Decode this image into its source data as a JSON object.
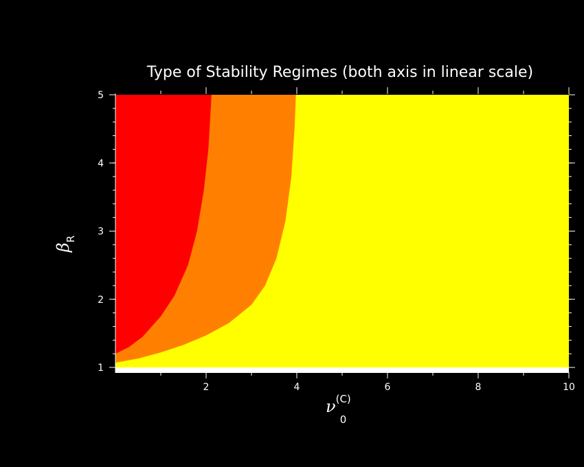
{
  "chart_data": {
    "type": "area",
    "title": "Type of Stability Regimes (both axis in linear scale)",
    "xlabel": {
      "symbol": "ν",
      "superscript": "(C)",
      "subscript": "0"
    },
    "ylabel": {
      "symbol": "β",
      "subscript": "R"
    },
    "xlim": [
      0,
      10
    ],
    "ylim": [
      1,
      5
    ],
    "x_ticks": [
      2,
      4,
      6,
      8,
      10
    ],
    "x_tick_labels": [
      "2",
      "4",
      "6",
      "8",
      "10"
    ],
    "y_ticks": [
      1,
      2,
      3,
      4,
      5
    ],
    "y_tick_labels": [
      "1",
      "2",
      "3",
      "4",
      "5"
    ],
    "grid": false,
    "background_color": "#ffff00",
    "regions": [
      {
        "color": "#ff0000",
        "boundary": [
          {
            "x": 0.0,
            "y": 1.2
          },
          {
            "x": 0.3,
            "y": 1.3
          },
          {
            "x": 0.6,
            "y": 1.45
          },
          {
            "x": 1.0,
            "y": 1.75
          },
          {
            "x": 1.3,
            "y": 2.05
          },
          {
            "x": 1.6,
            "y": 2.5
          },
          {
            "x": 1.8,
            "y": 3.0
          },
          {
            "x": 1.95,
            "y": 3.6
          },
          {
            "x": 2.05,
            "y": 4.2
          },
          {
            "x": 2.12,
            "y": 5.0
          }
        ]
      },
      {
        "color": "#ff8000",
        "boundary": [
          {
            "x": 0.0,
            "y": 1.07
          },
          {
            "x": 0.5,
            "y": 1.13
          },
          {
            "x": 1.0,
            "y": 1.22
          },
          {
            "x": 1.5,
            "y": 1.33
          },
          {
            "x": 2.0,
            "y": 1.47
          },
          {
            "x": 2.5,
            "y": 1.65
          },
          {
            "x": 3.0,
            "y": 1.92
          },
          {
            "x": 3.3,
            "y": 2.2
          },
          {
            "x": 3.55,
            "y": 2.6
          },
          {
            "x": 3.75,
            "y": 3.15
          },
          {
            "x": 3.88,
            "y": 3.8
          },
          {
            "x": 3.95,
            "y": 4.5
          },
          {
            "x": 3.98,
            "y": 5.0
          }
        ]
      }
    ]
  }
}
